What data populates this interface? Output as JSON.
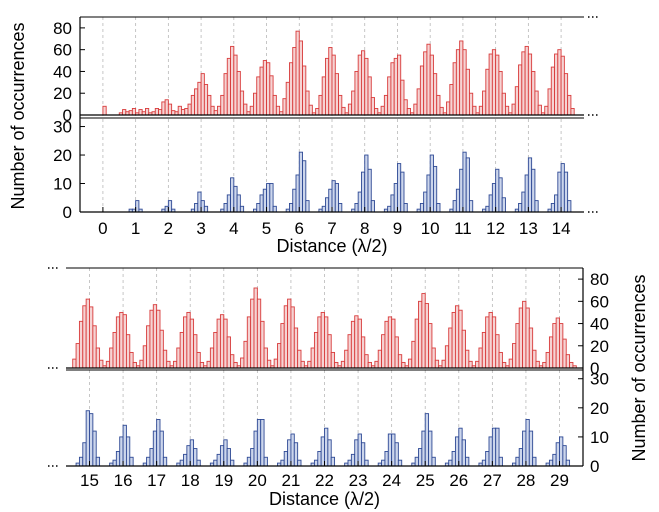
{
  "colors": {
    "red_fill": "#f6d3d3",
    "red_stroke": "#d83c3c",
    "blue_fill": "#ccd6ec",
    "blue_stroke": "#2f4a95",
    "grid": "#b8b8b8"
  },
  "chart_data": [
    {
      "type": "bar",
      "panel": "top",
      "xlabel": "Distance (λ/2)",
      "ylabel": "Number of occurrences",
      "x_ticks": [
        "0",
        "1",
        "2",
        "3",
        "4",
        "5",
        "6",
        "7",
        "8",
        "9",
        "10",
        "11",
        "12",
        "13",
        "14"
      ],
      "x_start": 0,
      "bins_per_unit": 10,
      "upper": {
        "ylim": [
          0,
          90
        ],
        "yticks": [
          "0",
          "20",
          "40",
          "60",
          "80"
        ],
        "peaks": [
          8,
          6,
          14,
          38,
          63,
          50,
          77,
          62,
          59,
          55,
          65,
          68,
          60,
          63,
          60
        ],
        "values": [
          [
            0,
            0,
            0,
            0,
            0,
            8,
            0,
            0,
            0,
            0
          ],
          [
            2,
            5,
            3,
            4,
            6,
            2,
            5,
            3,
            6,
            2
          ],
          [
            3,
            6,
            5,
            12,
            14,
            10,
            4,
            3,
            8,
            5
          ],
          [
            6,
            10,
            18,
            24,
            30,
            38,
            28,
            18,
            8,
            4
          ],
          [
            8,
            18,
            38,
            52,
            63,
            55,
            40,
            22,
            10,
            3
          ],
          [
            8,
            20,
            35,
            44,
            50,
            48,
            36,
            18,
            8,
            3
          ],
          [
            15,
            30,
            48,
            62,
            77,
            68,
            45,
            22,
            9,
            2
          ],
          [
            6,
            18,
            35,
            52,
            62,
            55,
            38,
            18,
            7,
            2
          ],
          [
            10,
            22,
            40,
            55,
            59,
            52,
            35,
            16,
            6,
            2
          ],
          [
            8,
            18,
            35,
            48,
            52,
            55,
            32,
            14,
            6,
            2
          ],
          [
            10,
            24,
            45,
            58,
            65,
            55,
            38,
            18,
            7,
            2
          ],
          [
            12,
            28,
            48,
            60,
            68,
            60,
            42,
            20,
            8,
            2
          ],
          [
            8,
            22,
            42,
            56,
            60,
            55,
            40,
            20,
            8,
            2
          ],
          [
            10,
            26,
            46,
            58,
            63,
            56,
            40,
            22,
            9,
            2
          ],
          [
            8,
            24,
            44,
            56,
            60,
            54,
            38,
            18,
            6,
            0
          ]
        ]
      },
      "lower": {
        "ylim": [
          0,
          33
        ],
        "yticks": [
          "0",
          "10",
          "20",
          "30"
        ],
        "peaks": [
          0,
          4,
          4,
          7,
          12,
          10,
          21,
          11,
          20,
          17,
          20,
          21,
          15,
          19,
          17
        ],
        "values": [
          [
            0,
            0,
            0,
            0,
            0,
            0,
            0,
            0,
            0,
            0
          ],
          [
            0,
            0,
            0,
            1,
            1,
            4,
            1,
            0,
            0,
            0
          ],
          [
            0,
            0,
            0,
            1,
            2,
            4,
            1,
            0,
            0,
            0
          ],
          [
            0,
            0,
            1,
            3,
            7,
            4,
            2,
            0,
            0,
            0
          ],
          [
            0,
            1,
            3,
            6,
            12,
            9,
            6,
            2,
            0,
            0
          ],
          [
            0,
            1,
            3,
            6,
            8,
            10,
            10,
            2,
            0,
            0
          ],
          [
            0,
            1,
            3,
            8,
            13,
            21,
            18,
            4,
            0,
            0
          ],
          [
            0,
            1,
            2,
            5,
            8,
            11,
            10,
            3,
            0,
            0
          ],
          [
            0,
            1,
            3,
            7,
            14,
            20,
            15,
            4,
            0,
            0
          ],
          [
            0,
            1,
            2,
            6,
            10,
            17,
            14,
            3,
            0,
            0
          ],
          [
            0,
            1,
            3,
            7,
            13,
            20,
            16,
            3,
            0,
            0
          ],
          [
            0,
            1,
            4,
            8,
            15,
            21,
            19,
            4,
            0,
            0
          ],
          [
            0,
            1,
            2,
            6,
            10,
            15,
            12,
            5,
            0,
            0
          ],
          [
            0,
            1,
            3,
            7,
            13,
            19,
            15,
            4,
            0,
            0
          ],
          [
            0,
            1,
            3,
            6,
            14,
            17,
            14,
            4,
            0,
            0
          ]
        ]
      }
    },
    {
      "type": "bar",
      "panel": "bottom",
      "xlabel": "Distance (λ/2)",
      "ylabel": "Number of occurrences",
      "x_ticks": [
        "15",
        "16",
        "17",
        "18",
        "19",
        "20",
        "21",
        "22",
        "23",
        "24",
        "25",
        "26",
        "27",
        "28",
        "29"
      ],
      "x_start": 15,
      "bins_per_unit": 10,
      "upper": {
        "ylim": [
          0,
          90
        ],
        "yticks": [
          "0",
          "20",
          "40",
          "60",
          "80"
        ],
        "peaks": [
          62,
          50,
          57,
          50,
          48,
          72,
          62,
          50,
          47,
          46,
          67,
          56,
          50,
          60,
          45
        ],
        "values": [
          [
            8,
            22,
            42,
            56,
            62,
            55,
            38,
            18,
            7,
            2
          ],
          [
            6,
            18,
            32,
            46,
            50,
            48,
            30,
            14,
            5,
            2
          ],
          [
            7,
            20,
            38,
            52,
            57,
            52,
            34,
            16,
            6,
            2
          ],
          [
            6,
            18,
            32,
            46,
            50,
            44,
            30,
            14,
            5,
            2
          ],
          [
            6,
            18,
            32,
            44,
            48,
            44,
            28,
            12,
            5,
            2
          ],
          [
            9,
            24,
            46,
            62,
            72,
            62,
            42,
            18,
            7,
            2
          ],
          [
            8,
            22,
            40,
            56,
            62,
            55,
            36,
            16,
            6,
            2
          ],
          [
            6,
            18,
            32,
            46,
            50,
            46,
            30,
            14,
            5,
            2
          ],
          [
            6,
            16,
            30,
            42,
            47,
            44,
            28,
            12,
            5,
            2
          ],
          [
            6,
            16,
            30,
            42,
            46,
            44,
            28,
            12,
            5,
            2
          ],
          [
            8,
            24,
            44,
            60,
            67,
            58,
            40,
            18,
            7,
            2
          ],
          [
            7,
            20,
            36,
            50,
            56,
            52,
            34,
            16,
            6,
            2
          ],
          [
            6,
            18,
            32,
            46,
            50,
            46,
            30,
            14,
            5,
            2
          ],
          [
            8,
            22,
            40,
            54,
            60,
            54,
            36,
            16,
            6,
            2
          ],
          [
            5,
            14,
            28,
            40,
            45,
            40,
            26,
            12,
            5,
            2
          ]
        ]
      },
      "lower": {
        "ylim": [
          0,
          33
        ],
        "yticks": [
          "0",
          "10",
          "20",
          "30"
        ],
        "peaks": [
          19,
          14,
          16,
          9,
          9,
          16,
          11,
          13,
          11,
          11,
          18,
          13,
          13,
          16,
          10
        ],
        "values": [
          [
            0,
            1,
            3,
            8,
            19,
            18,
            12,
            3,
            0,
            0
          ],
          [
            0,
            1,
            2,
            5,
            10,
            14,
            10,
            3,
            0,
            0
          ],
          [
            0,
            1,
            3,
            6,
            12,
            16,
            12,
            3,
            0,
            0
          ],
          [
            0,
            1,
            2,
            4,
            7,
            9,
            6,
            2,
            0,
            0
          ],
          [
            0,
            1,
            2,
            4,
            7,
            9,
            6,
            2,
            0,
            0
          ],
          [
            0,
            1,
            3,
            6,
            12,
            16,
            16,
            3,
            0,
            0
          ],
          [
            0,
            1,
            2,
            5,
            9,
            11,
            8,
            2,
            0,
            0
          ],
          [
            0,
            1,
            2,
            5,
            10,
            13,
            9,
            3,
            0,
            0
          ],
          [
            0,
            1,
            2,
            4,
            9,
            11,
            8,
            2,
            0,
            0
          ],
          [
            0,
            1,
            2,
            5,
            11,
            11,
            8,
            2,
            0,
            0
          ],
          [
            0,
            1,
            3,
            6,
            12,
            18,
            12,
            3,
            0,
            0
          ],
          [
            0,
            1,
            2,
            5,
            10,
            13,
            9,
            3,
            0,
            0
          ],
          [
            0,
            1,
            2,
            5,
            10,
            13,
            13,
            3,
            0,
            0
          ],
          [
            0,
            1,
            3,
            6,
            12,
            16,
            12,
            3,
            0,
            0
          ],
          [
            0,
            1,
            2,
            4,
            8,
            10,
            7,
            2,
            0,
            0
          ]
        ]
      }
    }
  ]
}
